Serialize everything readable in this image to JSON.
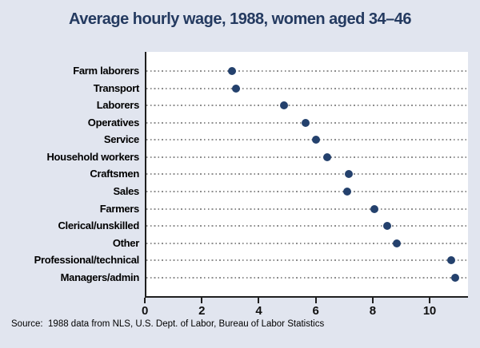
{
  "title": "Average hourly wage, 1988, women aged 34–46",
  "source_note": "Source:  1988 data from NLS, U.S. Dept. of Labor, Bureau of Labor Statistics",
  "colors": {
    "page_background": "#e1e5ef",
    "plot_background": "#ffffff",
    "marker": "#24416d",
    "title_text": "#243a60",
    "gridline": "#8d8d8d",
    "axis": "#1f1f1f"
  },
  "chart_data": {
    "type": "scatter",
    "subtype": "dot-plot",
    "orientation": "horizontal",
    "title": "Average hourly wage, 1988, women aged 34–46",
    "categories": [
      "Farm laborers",
      "Transport",
      "Laborers",
      "Operatives",
      "Service",
      "Household workers",
      "Craftsmen",
      "Sales",
      "Farmers",
      "Clerical/unskilled",
      "Other",
      "Professional/technical",
      "Managers/admin"
    ],
    "values": [
      3.05,
      3.2,
      4.9,
      5.65,
      6.0,
      6.4,
      7.15,
      7.1,
      8.05,
      8.5,
      8.85,
      10.75,
      10.9
    ],
    "xlabel": "",
    "ylabel": "",
    "xlim": [
      0,
      11.35
    ],
    "xticks": [
      0,
      2,
      4,
      6,
      8,
      10
    ],
    "grid": "horizontal dotted per category",
    "legend": "none"
  }
}
